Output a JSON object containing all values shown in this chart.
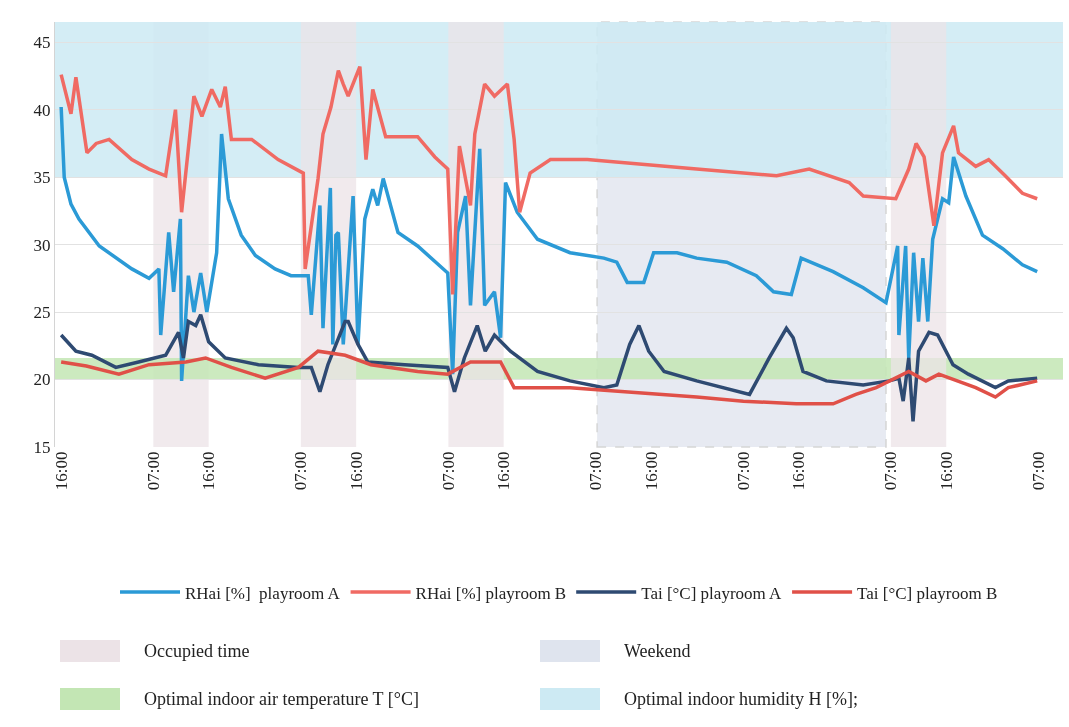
{
  "chart_data": {
    "type": "line",
    "legend": "bottom",
    "grid": "y",
    "marker": "none",
    "line_style": "solid",
    "xlim": [
      "2000-01-04T15:00",
      "2000-01-11T11:00"
    ],
    "ylim": [
      15,
      46.5
    ],
    "xticks": [
      {
        "value": "2000-01-04T16:00",
        "label": "16:00"
      },
      {
        "value": "2000-01-05T07:00",
        "label": "07:00"
      },
      {
        "value": "2000-01-05T16:00",
        "label": "16:00"
      },
      {
        "value": "2000-01-06T07:00",
        "label": "07:00"
      },
      {
        "value": "2000-01-06T16:00",
        "label": "16:00"
      },
      {
        "value": "2000-01-07T07:00",
        "label": "07:00"
      },
      {
        "value": "2000-01-07T16:00",
        "label": "16:00"
      },
      {
        "value": "2000-01-08T07:00",
        "label": "07:00"
      },
      {
        "value": "2000-01-08T16:00",
        "label": "16:00"
      },
      {
        "value": "2000-01-09T07:00",
        "label": "07:00"
      },
      {
        "value": "2000-01-09T16:00",
        "label": "16:00"
      },
      {
        "value": "2000-01-10T07:00",
        "label": "07:00"
      },
      {
        "value": "2000-01-10T16:00",
        "label": "16:00"
      },
      {
        "value": "2000-01-11T07:00",
        "label": "07:00"
      }
    ],
    "yticks": [
      15,
      20,
      25,
      30,
      35,
      40,
      45
    ],
    "bands": [
      {
        "axis": "x",
        "from": "2000-01-05T07:00",
        "to": "2000-01-05T16:00",
        "label": "Occupied time",
        "color": "#ece3e7"
      },
      {
        "axis": "x",
        "from": "2000-01-08T07:12",
        "to": "2000-01-10T06:12",
        "label": "Weekend",
        "color": "#dfe4ee"
      },
      {
        "axis": "y",
        "from": 20,
        "to": 21.6,
        "label": "Optimal indoor air temperature T [°C]",
        "color": "#c3e6b4"
      },
      {
        "axis": "y",
        "from": 35,
        "to": 46.5,
        "label": "Optimal indoor humidity H [%];",
        "color": "#cdeaf3"
      },
      {
        "axis": "x",
        "from": "2000-01-06T07:00",
        "to": "2000-01-06T16:00",
        "color": "#ece3e7"
      },
      {
        "axis": "x",
        "from": "2000-01-07T07:00",
        "to": "2000-01-07T16:00",
        "color": "#ece3e7"
      },
      {
        "axis": "x",
        "from": "2000-01-10T07:00",
        "to": "2000-01-10T16:00",
        "color": "#ece3e7"
      }
    ],
    "series": [
      {
        "name": "RHai [%]  playroom A",
        "color": "#2b9ad6",
        "x": [
          "2000-01-04T16:00",
          "2000-01-04T16:30",
          "2000-01-04T17:36",
          "2000-01-04T18:54",
          "2000-01-04T22:12",
          "2000-01-05T03:30",
          "2000-01-05T06:18",
          "2000-01-05T07:54",
          "2000-01-05T08:12",
          "2000-01-05T09:30",
          "2000-01-05T10:18",
          "2000-01-05T11:24",
          "2000-01-05T11:36",
          "2000-01-05T12:42",
          "2000-01-05T13:36",
          "2000-01-05T14:42",
          "2000-01-05T15:42",
          "2000-01-05T17:18",
          "2000-01-05T18:06",
          "2000-01-05T19:12",
          "2000-01-05T21:18",
          "2000-01-05T23:36",
          "2000-01-06T02:48",
          "2000-01-06T05:24",
          "2000-01-06T08:12",
          "2000-01-06T08:42",
          "2000-01-06T10:06",
          "2000-01-06T10:36",
          "2000-01-06T11:48",
          "2000-01-06T12:12",
          "2000-01-06T12:42",
          "2000-01-06T13:06",
          "2000-01-06T13:54",
          "2000-01-06T15:30",
          "2000-01-06T16:18",
          "2000-01-06T17:24",
          "2000-01-06T18:42",
          "2000-01-06T19:30",
          "2000-01-06T20:24",
          "2000-01-06T22:48",
          "2000-01-07T02:00",
          "2000-01-07T06:54",
          "2000-01-07T07:42",
          "2000-01-07T08:30",
          "2000-01-07T09:48",
          "2000-01-07T10:36",
          "2000-01-07T12:06",
          "2000-01-07T12:54",
          "2000-01-07T14:30",
          "2000-01-07T15:30",
          "2000-01-07T16:18",
          "2000-01-07T18:12",
          "2000-01-07T21:30",
          "2000-01-08T02:48",
          "2000-01-08T08:18",
          "2000-01-08T10:24",
          "2000-01-08T12:06",
          "2000-01-08T14:48",
          "2000-01-08T16:24",
          "2000-01-08T20:12",
          "2000-01-08T23:24",
          "2000-01-09T04:18",
          "2000-01-09T09:06",
          "2000-01-09T11:54",
          "2000-01-09T14:48",
          "2000-01-09T16:24",
          "2000-01-09T21:36",
          "2000-01-10T02:30",
          "2000-01-10T06:12",
          "2000-01-10T08:06",
          "2000-01-10T08:18",
          "2000-01-10T09:24",
          "2000-01-10T09:54",
          "2000-01-10T10:42",
          "2000-01-10T11:30",
          "2000-01-10T12:12",
          "2000-01-10T13:00",
          "2000-01-10T13:48",
          "2000-01-10T15:24",
          "2000-01-10T16:24",
          "2000-01-10T17:12",
          "2000-01-10T19:12",
          "2000-01-10T21:54",
          "2000-01-11T01:12",
          "2000-01-11T04:24",
          "2000-01-11T06:48"
        ],
        "values": [
          40.2,
          35,
          33,
          31.9,
          29.9,
          28.2,
          27.5,
          28.2,
          23.3,
          30.9,
          26.5,
          31.9,
          19.9,
          27.7,
          25,
          27.9,
          25,
          29.4,
          38.2,
          33.4,
          30.7,
          29.2,
          28.2,
          27.7,
          27.7,
          24.8,
          32.9,
          23.8,
          34.2,
          22.6,
          30.7,
          30.9,
          22.6,
          33.6,
          22.6,
          31.9,
          34.1,
          32.9,
          34.9,
          30.9,
          29.9,
          27.9,
          20.4,
          30.9,
          33.6,
          25.5,
          37.1,
          25.5,
          26.5,
          23.1,
          34.6,
          32.4,
          30.4,
          29.4,
          29,
          28.7,
          27.2,
          27.2,
          29.4,
          29.4,
          29,
          28.7,
          27.7,
          26.5,
          26.3,
          29,
          28,
          26.8,
          25.7,
          29.9,
          23.3,
          29.9,
          21.6,
          29.4,
          24.3,
          29,
          24.3,
          30.4,
          33.4,
          33.1,
          36.5,
          33.6,
          30.7,
          29.7,
          28.5,
          28
        ]
      },
      {
        "name": "RHai [%] playroom B",
        "color": "#f06a63",
        "x": [
          "2000-01-04T16:00",
          "2000-01-04T17:36",
          "2000-01-04T18:24",
          "2000-01-04T20:12",
          "2000-01-04T21:42",
          "2000-01-04T23:48",
          "2000-01-05T03:30",
          "2000-01-05T06:18",
          "2000-01-05T09:00",
          "2000-01-05T10:36",
          "2000-01-05T11:36",
          "2000-01-05T13:36",
          "2000-01-05T14:54",
          "2000-01-05T16:30",
          "2000-01-05T17:54",
          "2000-01-05T18:42",
          "2000-01-05T19:42",
          "2000-01-05T23:00",
          "2000-01-06T03:18",
          "2000-01-06T07:24",
          "2000-01-06T07:42",
          "2000-01-06T09:48",
          "2000-01-06T10:36",
          "2000-01-06T11:54",
          "2000-01-06T13:06",
          "2000-01-06T13:54",
          "2000-01-06T14:42",
          "2000-01-06T16:36",
          "2000-01-06T17:36",
          "2000-01-06T18:42",
          "2000-01-06T20:48",
          "2000-01-07T02:00",
          "2000-01-07T04:48",
          "2000-01-07T06:54",
          "2000-01-07T07:42",
          "2000-01-07T08:48",
          "2000-01-07T10:36",
          "2000-01-07T11:18",
          "2000-01-07T12:54",
          "2000-01-07T14:30",
          "2000-01-07T16:36",
          "2000-01-07T17:42",
          "2000-01-07T18:36",
          "2000-01-07T20:18",
          "2000-01-07T23:36",
          "2000-01-08T05:36",
          "2000-01-08T23:24",
          "2000-01-09T12:24",
          "2000-01-09T17:42",
          "2000-01-10T00:12",
          "2000-01-10T02:30",
          "2000-01-10T07:48",
          "2000-01-10T09:54",
          "2000-01-10T11:06",
          "2000-01-10T12:24",
          "2000-01-10T14:00",
          "2000-01-10T15:24",
          "2000-01-10T17:12",
          "2000-01-10T18:00",
          "2000-01-10T20:48",
          "2000-01-10T22:54",
          "2000-01-11T01:36",
          "2000-01-11T04:24",
          "2000-01-11T06:48"
        ],
        "values": [
          42.6,
          39.7,
          42.4,
          36.8,
          37.5,
          37.8,
          36.3,
          35.6,
          35.1,
          40,
          32.4,
          41,
          39.5,
          41.5,
          40.2,
          41.7,
          37.8,
          37.8,
          36.3,
          35.3,
          28.2,
          34.9,
          38.2,
          40.2,
          42.9,
          41.9,
          41,
          43.2,
          36.3,
          41.5,
          38,
          38,
          36.5,
          35.6,
          26.3,
          37.3,
          32.9,
          38.2,
          41.9,
          41,
          41.9,
          37.8,
          32.4,
          35.3,
          36.3,
          36.3,
          35.6,
          35.1,
          35.6,
          34.6,
          33.6,
          33.4,
          35.6,
          37.5,
          36.5,
          31.4,
          36.8,
          38.8,
          36.8,
          35.8,
          36.3,
          35.1,
          33.8,
          33.4
        ]
      },
      {
        "name": "Tai [°C] playroom A",
        "color": "#2e4a72",
        "x": [
          "2000-01-04T16:00",
          "2000-01-04T18:24",
          "2000-01-04T21:00",
          "2000-01-05T00:54",
          "2000-01-05T04:36",
          "2000-01-05T09:00",
          "2000-01-05T11:06",
          "2000-01-05T11:54",
          "2000-01-05T12:42",
          "2000-01-05T13:54",
          "2000-01-05T14:42",
          "2000-01-05T16:00",
          "2000-01-05T18:42",
          "2000-01-06T00:06",
          "2000-01-06T06:36",
          "2000-01-06T08:42",
          "2000-01-06T10:06",
          "2000-01-06T11:24",
          "2000-01-06T14:12",
          "2000-01-06T14:42",
          "2000-01-06T16:18",
          "2000-01-06T17:54",
          "2000-01-06T23:54",
          "2000-01-07T06:54",
          "2000-01-07T08:00",
          "2000-01-07T09:36",
          "2000-01-07T11:42",
          "2000-01-07T13:00",
          "2000-01-07T14:30",
          "2000-01-07T17:06",
          "2000-01-07T21:30",
          "2000-01-08T02:48",
          "2000-01-08T08:18",
          "2000-01-08T10:24",
          "2000-01-08T12:30",
          "2000-01-08T14:00",
          "2000-01-08T15:36",
          "2000-01-08T18:06",
          "2000-01-08T23:24",
          "2000-01-09T08:00",
          "2000-01-09T11:12",
          "2000-01-09T14:00",
          "2000-01-09T15:06",
          "2000-01-09T16:42",
          "2000-01-09T20:30",
          "2000-01-10T02:30",
          "2000-01-10T06:42",
          "2000-01-10T08:18",
          "2000-01-10T09:00",
          "2000-01-10T09:54",
          "2000-01-10T10:36",
          "2000-01-10T11:30",
          "2000-01-10T13:12",
          "2000-01-10T14:36",
          "2000-01-10T17:06",
          "2000-01-10T19:36",
          "2000-01-11T00:00",
          "2000-01-11T02:06",
          "2000-01-11T06:48"
        ],
        "values": [
          23.3,
          22.1,
          21.8,
          20.9,
          21.3,
          21.8,
          23.5,
          21.6,
          24.3,
          24,
          24.8,
          22.8,
          21.6,
          21.1,
          20.9,
          20.9,
          19.1,
          21.1,
          24.3,
          24.3,
          22.6,
          21.3,
          21.1,
          20.9,
          19.1,
          21.6,
          24,
          22.1,
          23.3,
          22.1,
          20.6,
          19.9,
          19.4,
          19.6,
          22.6,
          24,
          22.1,
          20.6,
          19.9,
          18.9,
          21.6,
          23.8,
          23.1,
          20.6,
          19.9,
          19.6,
          19.9,
          20.1,
          18.4,
          21.6,
          16.9,
          22.1,
          23.5,
          23.3,
          21.1,
          20.4,
          19.4,
          19.9,
          20.1
        ]
      },
      {
        "name": "Tai [°C] playroom B",
        "color": "#e05048",
        "x": [
          "2000-01-04T16:00",
          "2000-01-04T20:06",
          "2000-01-05T01:24",
          "2000-01-05T06:18",
          "2000-01-05T12:18",
          "2000-01-05T15:30",
          "2000-01-05T19:42",
          "2000-01-06T01:12",
          "2000-01-06T06:36",
          "2000-01-06T09:48",
          "2000-01-06T14:12",
          "2000-01-06T18:24",
          "2000-01-07T02:00",
          "2000-01-07T06:54",
          "2000-01-07T10:36",
          "2000-01-07T15:30",
          "2000-01-07T17:42",
          "2000-01-08T02:48",
          "2000-01-08T23:24",
          "2000-01-09T07:00",
          "2000-01-09T15:36",
          "2000-01-09T21:36",
          "2000-01-10T01:18",
          "2000-01-10T04:36",
          "2000-01-10T09:54",
          "2000-01-10T12:42",
          "2000-01-10T14:48",
          "2000-01-10T20:48",
          "2000-01-11T00:00",
          "2000-01-11T02:06",
          "2000-01-11T06:48"
        ],
        "values": [
          21.3,
          21,
          20.4,
          21.1,
          21.3,
          21.6,
          20.9,
          20.1,
          20.9,
          22.1,
          21.8,
          21.1,
          20.6,
          20.4,
          21.3,
          21.3,
          19.4,
          19.4,
          18.7,
          18.4,
          18.2,
          18.2,
          18.9,
          19.4,
          20.6,
          19.9,
          20.4,
          19.4,
          18.7,
          19.4,
          19.9
        ]
      }
    ]
  }
}
